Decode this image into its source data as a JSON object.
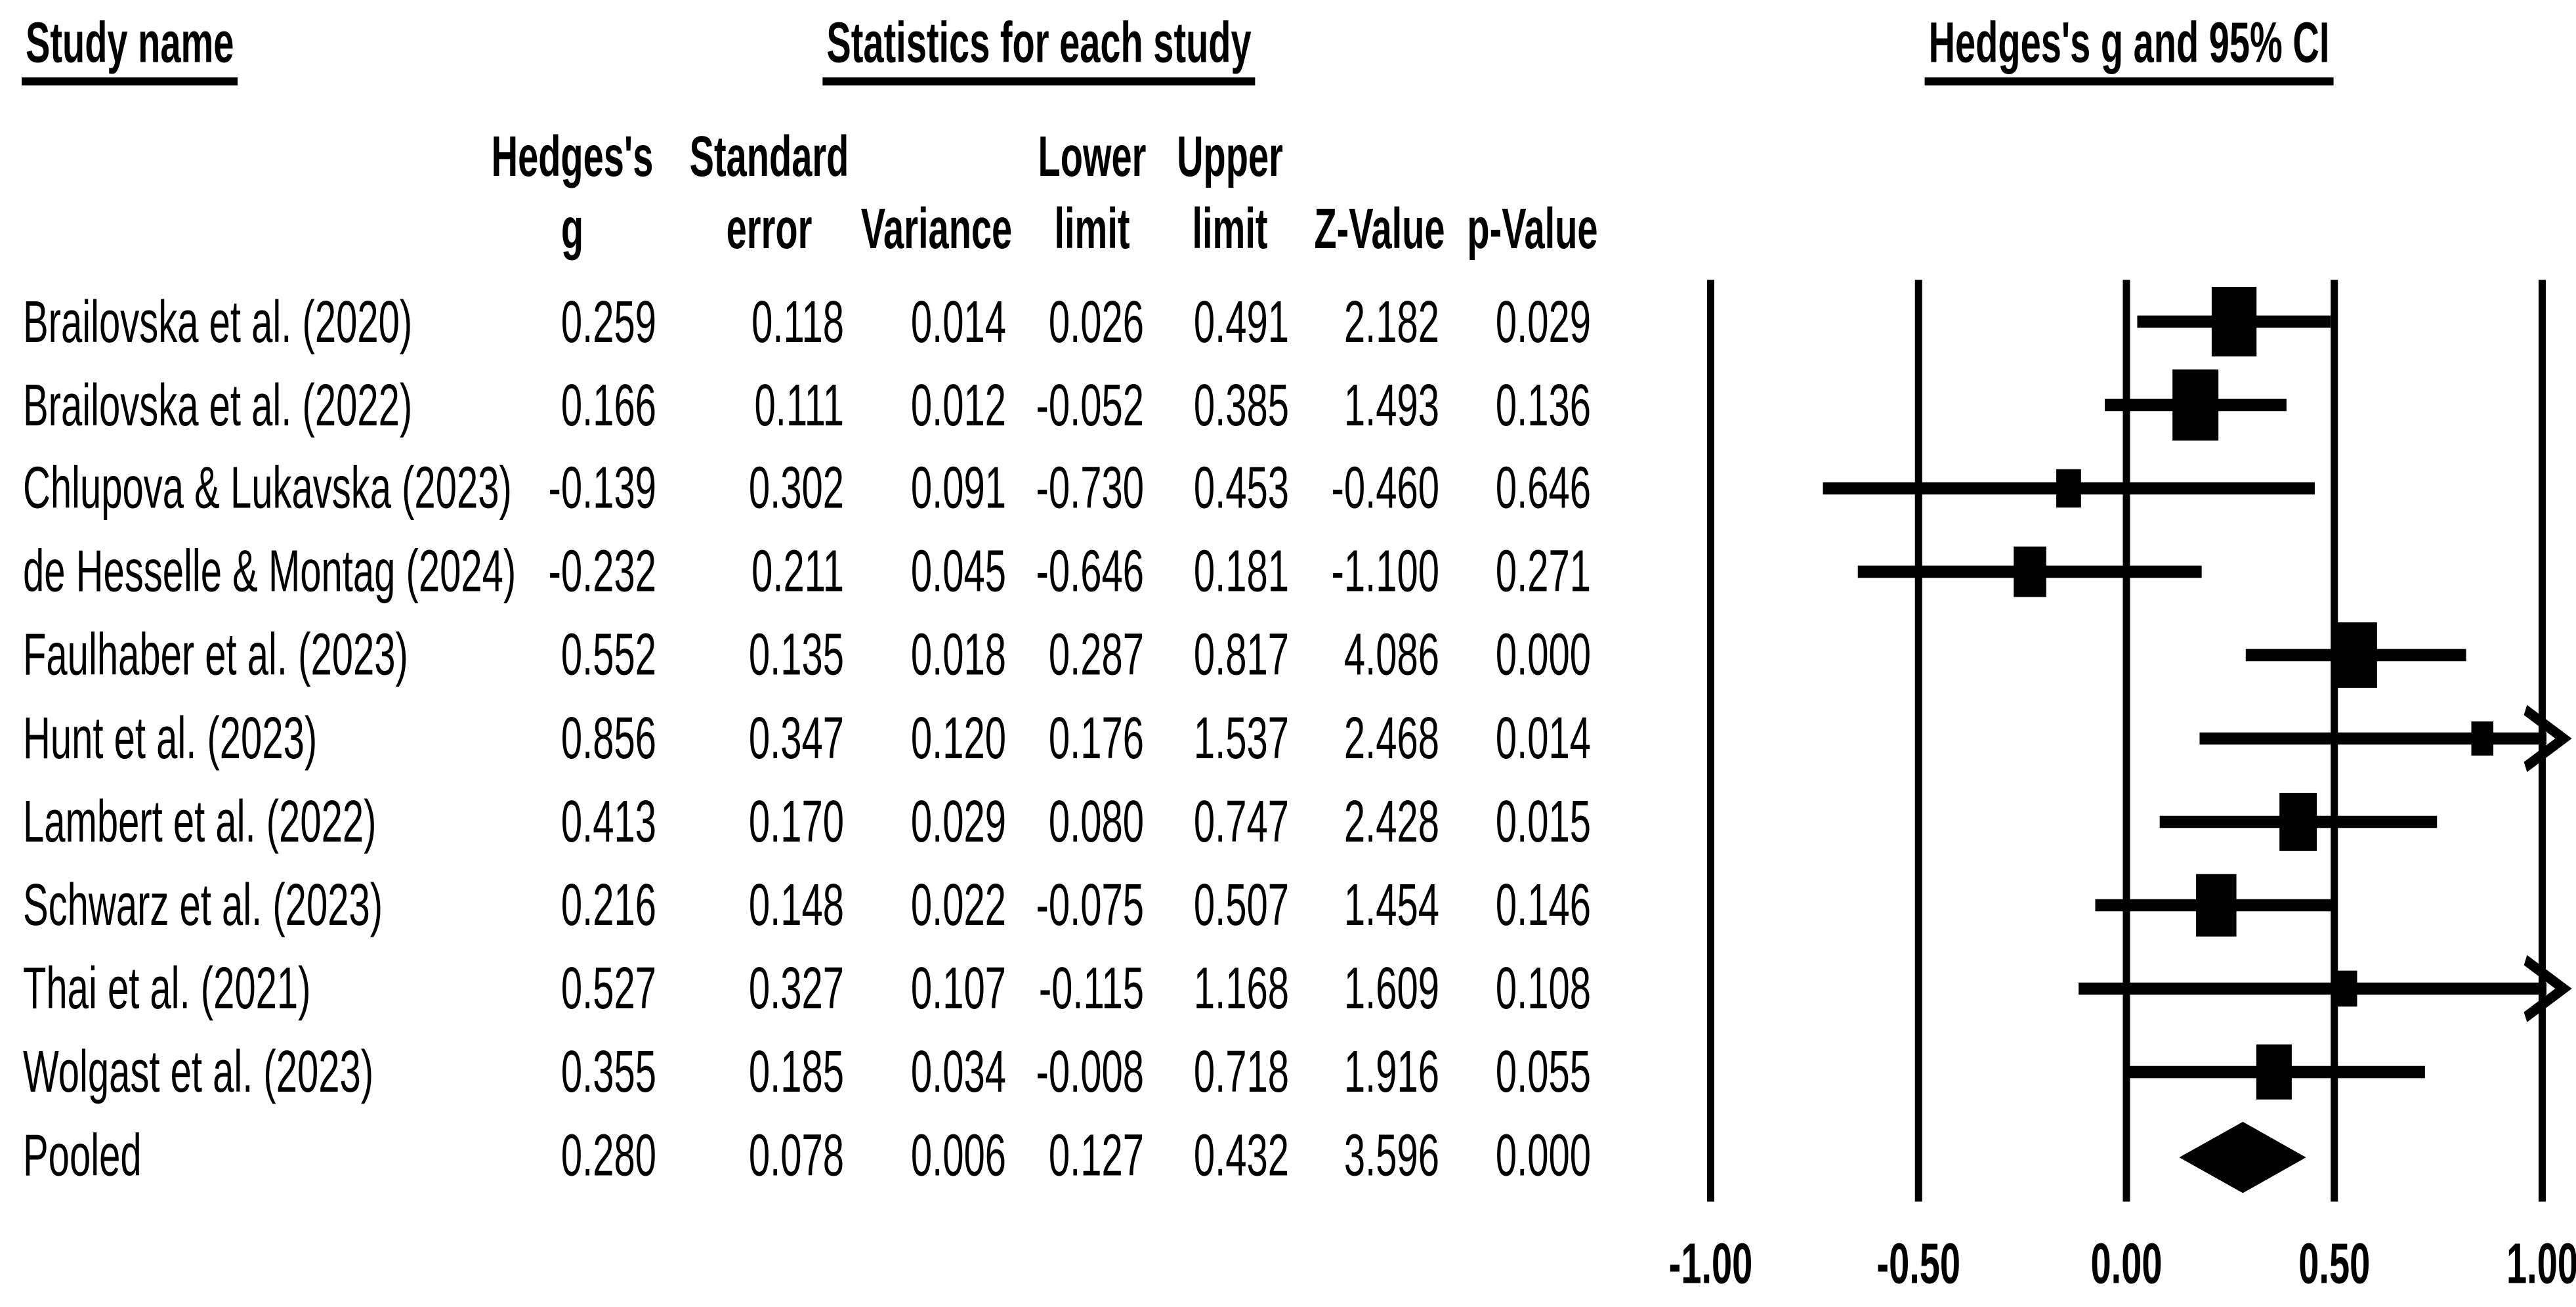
{
  "titles": {
    "study_name": "Study name",
    "stats": "Statistics for each study",
    "plot": "Hedges's g and 95% CI"
  },
  "table": {
    "columns": [
      {
        "line1": "Hedges's",
        "line2": "g"
      },
      {
        "line1": "Standard",
        "line2": "error"
      },
      {
        "line1": "",
        "line2": "Variance"
      },
      {
        "line1": "Lower",
        "line2": "limit"
      },
      {
        "line1": "Upper",
        "line2": "limit"
      },
      {
        "line1": "",
        "line2": "Z-Value"
      },
      {
        "line1": "",
        "line2": "p-Value"
      }
    ]
  },
  "chart_data": {
    "type": "forest",
    "effect_label": "Hedges's g",
    "xlim": [
      -1,
      1
    ],
    "x_ticks": [
      "-1.00",
      "-0.50",
      "0.00",
      "0.50",
      "1.00"
    ],
    "grid": true,
    "studies": [
      {
        "name": "Brailovska et al. (2020)",
        "g": "0.259",
        "se": "0.118",
        "variance": "0.014",
        "lower": "0.026",
        "upper": "0.491",
        "z": "2.182",
        "p": "0.029",
        "pooled": false
      },
      {
        "name": "Brailovska et al. (2022)",
        "g": "0.166",
        "se": "0.111",
        "variance": "0.012",
        "lower": "-0.052",
        "upper": "0.385",
        "z": "1.493",
        "p": "0.136",
        "pooled": false
      },
      {
        "name": "Chlupova & Lukavska (2023)",
        "g": "-0.139",
        "se": "0.302",
        "variance": "0.091",
        "lower": "-0.730",
        "upper": "0.453",
        "z": "-0.460",
        "p": "0.646",
        "pooled": false
      },
      {
        "name": "de Hesselle & Montag (2024)",
        "g": "-0.232",
        "se": "0.211",
        "variance": "0.045",
        "lower": "-0.646",
        "upper": "0.181",
        "z": "-1.100",
        "p": "0.271",
        "pooled": false
      },
      {
        "name": "Faulhaber et al. (2023)",
        "g": "0.552",
        "se": "0.135",
        "variance": "0.018",
        "lower": "0.287",
        "upper": "0.817",
        "z": "4.086",
        "p": "0.000",
        "pooled": false
      },
      {
        "name": "Hunt et al. (2023)",
        "g": "0.856",
        "se": "0.347",
        "variance": "0.120",
        "lower": "0.176",
        "upper": "1.537",
        "z": "2.468",
        "p": "0.014",
        "pooled": false
      },
      {
        "name": "Lambert et al. (2022)",
        "g": "0.413",
        "se": "0.170",
        "variance": "0.029",
        "lower": "0.080",
        "upper": "0.747",
        "z": "2.428",
        "p": "0.015",
        "pooled": false
      },
      {
        "name": "Schwarz et al. (2023)",
        "g": "0.216",
        "se": "0.148",
        "variance": "0.022",
        "lower": "-0.075",
        "upper": "0.507",
        "z": "1.454",
        "p": "0.146",
        "pooled": false
      },
      {
        "name": "Thai et al. (2021)",
        "g": "0.527",
        "se": "0.327",
        "variance": "0.107",
        "lower": "-0.115",
        "upper": "1.168",
        "z": "1.609",
        "p": "0.108",
        "pooled": false
      },
      {
        "name": "Wolgast et al. (2023)",
        "g": "0.355",
        "se": "0.185",
        "variance": "0.034",
        "lower": "-0.008",
        "upper": "0.718",
        "z": "1.916",
        "p": "0.055",
        "pooled": false
      },
      {
        "name": "Pooled",
        "g": "0.280",
        "se": "0.078",
        "variance": "0.006",
        "lower": "0.127",
        "upper": "0.432",
        "z": "3.596",
        "p": "0.000",
        "pooled": true
      }
    ],
    "colors": {
      "foreground": "#000000",
      "background": "#ffffff"
    }
  }
}
